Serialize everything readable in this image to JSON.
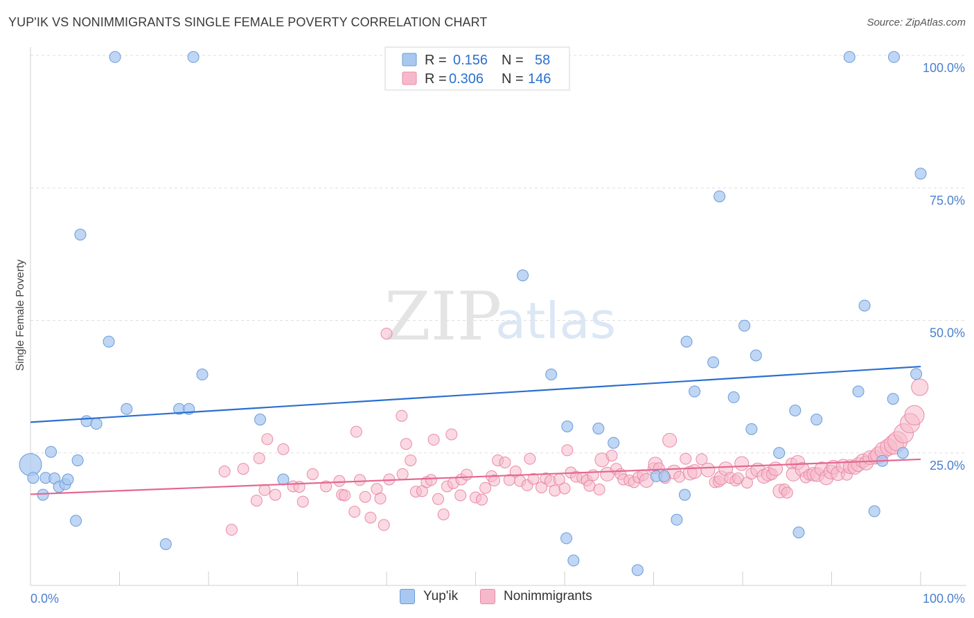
{
  "title": "YUP'IK VS NONIMMIGRANTS SINGLE FEMALE POVERTY CORRELATION CHART",
  "source": "Source: ZipAtlas.com",
  "watermark": {
    "zip": "ZIP",
    "atlas": "atlas"
  },
  "colors": {
    "blue_fill": "#a9c8f0",
    "blue_stroke": "#6a9bd8",
    "blue_line": "#2a6fd0",
    "pink_fill": "#f6b9cb",
    "pink_stroke": "#e88aa8",
    "pink_line": "#e5668f",
    "tick_text": "#4a7fd0",
    "grid": "#dddddd"
  },
  "legend_box": {
    "rows": [
      {
        "r_label": "R =",
        "r_value": "0.156",
        "n_label": "N =",
        "n_value": "58"
      },
      {
        "r_label": "R =",
        "r_value": "0.306",
        "n_label": "N =",
        "n_value": "146"
      }
    ]
  },
  "bottom_legend": {
    "items": [
      "Yup'ik",
      "Nonimmigrants"
    ]
  },
  "chart_data": {
    "type": "scatter",
    "title": "YUP'IK VS NONIMMIGRANTS SINGLE FEMALE POVERTY CORRELATION CHART",
    "xlabel": "",
    "ylabel": "Single Female Poverty",
    "xlim": [
      0,
      100
    ],
    "ylim": [
      0,
      100
    ],
    "x_tick_labels": [
      "0.0%",
      "100.0%"
    ],
    "y_tick_labels": [
      {
        "value": 25,
        "label": "25.0%"
      },
      {
        "value": 50,
        "label": "50.0%"
      },
      {
        "value": 75,
        "label": "75.0%"
      },
      {
        "value": 100,
        "label": "100.0%"
      }
    ],
    "grid": true,
    "legend_placement": "top-center",
    "series": [
      {
        "name": "Yup'ik",
        "r": 0.156,
        "n": 58,
        "trend": {
          "x": [
            0,
            100
          ],
          "y": [
            30.8,
            41.3
          ]
        },
        "points": [
          [
            0.0,
            22.8,
            16
          ],
          [
            0.3,
            20.3,
            8
          ],
          [
            1.4,
            17.1,
            8
          ],
          [
            1.7,
            20.3,
            8
          ],
          [
            2.3,
            25.2,
            8
          ],
          [
            2.7,
            20.2,
            8
          ],
          [
            3.2,
            18.6,
            8
          ],
          [
            3.9,
            19.1,
            8
          ],
          [
            4.2,
            20.0,
            8
          ],
          [
            5.1,
            12.2,
            8
          ],
          [
            5.3,
            23.6,
            8
          ],
          [
            5.6,
            66.2,
            8
          ],
          [
            6.3,
            31.0,
            8
          ],
          [
            7.4,
            30.5,
            8
          ],
          [
            8.8,
            46.0,
            8
          ],
          [
            9.5,
            99.7,
            8
          ],
          [
            10.8,
            33.3,
            8
          ],
          [
            15.2,
            7.8,
            8
          ],
          [
            16.7,
            33.3,
            8
          ],
          [
            17.8,
            33.3,
            8
          ],
          [
            18.3,
            99.7,
            8
          ],
          [
            19.3,
            39.8,
            8
          ],
          [
            25.8,
            31.3,
            8
          ],
          [
            28.4,
            20.0,
            8
          ],
          [
            55.3,
            58.5,
            8
          ],
          [
            58.5,
            39.8,
            8
          ],
          [
            60.2,
            8.9,
            8
          ],
          [
            60.3,
            30.0,
            8
          ],
          [
            61.0,
            4.7,
            8
          ],
          [
            63.8,
            29.6,
            8
          ],
          [
            65.5,
            26.9,
            8
          ],
          [
            68.2,
            2.9,
            8
          ],
          [
            70.3,
            20.6,
            8
          ],
          [
            71.2,
            20.6,
            8
          ],
          [
            72.6,
            12.4,
            8
          ],
          [
            73.5,
            17.1,
            8
          ],
          [
            73.7,
            46.0,
            8
          ],
          [
            74.6,
            36.6,
            8
          ],
          [
            76.7,
            42.1,
            8
          ],
          [
            77.4,
            73.4,
            8
          ],
          [
            79.0,
            35.5,
            8
          ],
          [
            80.2,
            49.0,
            8
          ],
          [
            81.0,
            29.5,
            8
          ],
          [
            81.5,
            43.4,
            8
          ],
          [
            84.1,
            25.0,
            8
          ],
          [
            85.9,
            33.0,
            8
          ],
          [
            86.3,
            10.0,
            8
          ],
          [
            88.3,
            31.3,
            8
          ],
          [
            92.0,
            99.7,
            8
          ],
          [
            93.0,
            36.6,
            8
          ],
          [
            93.7,
            52.8,
            8
          ],
          [
            94.8,
            14.0,
            8
          ],
          [
            95.7,
            23.5,
            8
          ],
          [
            96.9,
            35.2,
            8
          ],
          [
            97.0,
            99.7,
            8
          ],
          [
            98.0,
            25.0,
            8
          ],
          [
            99.5,
            39.9,
            8
          ],
          [
            100.0,
            77.7,
            8
          ]
        ]
      },
      {
        "name": "Nonimmigrants",
        "r": 0.306,
        "n": 146,
        "trend": {
          "x": [
            0,
            100
          ],
          "y": [
            17.2,
            23.8
          ]
        },
        "points": [
          [
            21.8,
            21.5,
            8
          ],
          [
            22.6,
            10.5,
            8
          ],
          [
            23.9,
            22.0,
            8
          ],
          [
            25.4,
            16.0,
            8
          ],
          [
            25.7,
            24.0,
            8
          ],
          [
            26.3,
            18.0,
            8
          ],
          [
            26.6,
            27.6,
            8
          ],
          [
            27.5,
            17.1,
            8
          ],
          [
            28.4,
            25.7,
            8
          ],
          [
            29.5,
            18.7,
            8
          ],
          [
            30.2,
            18.6,
            8
          ],
          [
            30.6,
            15.8,
            8
          ],
          [
            31.7,
            21.0,
            8
          ],
          [
            33.2,
            18.7,
            8
          ],
          [
            34.7,
            19.7,
            8
          ],
          [
            35.0,
            17.1,
            8
          ],
          [
            35.3,
            17.0,
            8
          ],
          [
            36.4,
            13.9,
            8
          ],
          [
            36.6,
            29.0,
            8
          ],
          [
            37.0,
            19.9,
            8
          ],
          [
            37.6,
            16.7,
            8
          ],
          [
            38.2,
            12.8,
            8
          ],
          [
            38.9,
            18.2,
            8
          ],
          [
            39.3,
            16.4,
            8
          ],
          [
            39.7,
            11.4,
            8
          ],
          [
            40.0,
            47.5,
            8
          ],
          [
            40.3,
            20.0,
            8
          ],
          [
            41.7,
            32.0,
            8
          ],
          [
            41.8,
            21.0,
            8
          ],
          [
            42.2,
            26.7,
            8
          ],
          [
            42.7,
            23.6,
            8
          ],
          [
            43.3,
            17.7,
            8
          ],
          [
            44.0,
            17.8,
            8
          ],
          [
            44.5,
            19.5,
            8
          ],
          [
            45.0,
            19.9,
            8
          ],
          [
            45.3,
            27.5,
            8
          ],
          [
            45.8,
            16.3,
            8
          ],
          [
            46.4,
            13.4,
            8
          ],
          [
            46.8,
            18.7,
            8
          ],
          [
            47.3,
            28.5,
            8
          ],
          [
            47.5,
            19.3,
            8
          ],
          [
            48.3,
            17.0,
            8
          ],
          [
            48.4,
            20.0,
            8
          ],
          [
            49.0,
            20.9,
            8
          ],
          [
            50.0,
            16.6,
            8
          ],
          [
            50.7,
            16.2,
            8
          ],
          [
            51.1,
            18.4,
            8
          ],
          [
            51.8,
            20.6,
            8
          ],
          [
            52.1,
            19.8,
            8
          ],
          [
            52.5,
            23.6,
            8
          ],
          [
            53.3,
            23.2,
            8
          ],
          [
            53.8,
            19.9,
            8
          ],
          [
            54.5,
            21.5,
            8
          ],
          [
            55.0,
            19.7,
            8
          ],
          [
            55.8,
            18.9,
            8
          ],
          [
            56.1,
            23.9,
            8
          ],
          [
            56.5,
            20.1,
            8
          ],
          [
            57.4,
            18.5,
            8
          ],
          [
            57.9,
            20.2,
            8
          ],
          [
            58.4,
            19.7,
            8
          ],
          [
            58.9,
            17.9,
            8
          ],
          [
            59.4,
            20.0,
            8
          ],
          [
            60.0,
            18.3,
            8
          ],
          [
            60.3,
            25.5,
            8
          ],
          [
            60.7,
            21.3,
            8
          ],
          [
            61.3,
            20.5,
            8
          ],
          [
            62.0,
            20.3,
            8
          ],
          [
            62.5,
            19.8,
            8
          ],
          [
            62.8,
            18.8,
            8
          ],
          [
            63.2,
            20.8,
            8
          ],
          [
            63.9,
            18.1,
            8
          ],
          [
            64.2,
            23.7,
            10
          ],
          [
            64.8,
            21.0,
            10
          ],
          [
            65.3,
            24.5,
            8
          ],
          [
            65.8,
            22.0,
            8
          ],
          [
            66.3,
            21.0,
            8
          ],
          [
            66.6,
            20.0,
            8
          ],
          [
            67.3,
            19.8,
            8
          ],
          [
            67.8,
            19.5,
            8
          ],
          [
            68.3,
            20.4,
            8
          ],
          [
            68.8,
            20.8,
            8
          ],
          [
            69.2,
            19.8,
            10
          ],
          [
            70.0,
            22.1,
            8
          ],
          [
            70.2,
            22.9,
            10
          ],
          [
            70.6,
            22.1,
            8
          ],
          [
            71.3,
            20.3,
            8
          ],
          [
            71.8,
            27.4,
            10
          ],
          [
            72.3,
            21.4,
            10
          ],
          [
            72.9,
            20.5,
            8
          ],
          [
            73.6,
            23.9,
            8
          ],
          [
            74.1,
            21.2,
            10
          ],
          [
            74.6,
            21.5,
            10
          ],
          [
            75.4,
            23.8,
            8
          ],
          [
            76.1,
            21.8,
            10
          ],
          [
            76.9,
            19.5,
            8
          ],
          [
            77.3,
            19.6,
            8
          ],
          [
            77.6,
            20.3,
            10
          ],
          [
            78.1,
            22.0,
            10
          ],
          [
            78.6,
            20.3,
            8
          ],
          [
            79.2,
            19.8,
            8
          ],
          [
            79.5,
            20.2,
            8
          ],
          [
            79.9,
            23.0,
            10
          ],
          [
            80.5,
            19.4,
            8
          ],
          [
            81.0,
            21.1,
            8
          ],
          [
            81.7,
            21.8,
            10
          ],
          [
            82.4,
            20.6,
            10
          ],
          [
            82.9,
            21.0,
            10
          ],
          [
            83.3,
            21.0,
            8
          ],
          [
            83.7,
            22.0,
            10
          ],
          [
            84.2,
            17.8,
            10
          ],
          [
            84.7,
            18.1,
            8
          ],
          [
            85.0,
            17.5,
            8
          ],
          [
            85.5,
            23.0,
            8
          ],
          [
            85.7,
            21.0,
            10
          ],
          [
            86.2,
            23.2,
            10
          ],
          [
            86.7,
            21.9,
            10
          ],
          [
            87.1,
            20.4,
            8
          ],
          [
            87.5,
            20.9,
            8
          ],
          [
            88.0,
            21.0,
            10
          ],
          [
            88.4,
            20.9,
            10
          ],
          [
            88.9,
            22.0,
            10
          ],
          [
            89.4,
            20.3,
            10
          ],
          [
            89.9,
            21.4,
            10
          ],
          [
            90.2,
            22.3,
            10
          ],
          [
            90.7,
            21.1,
            10
          ],
          [
            91.3,
            22.5,
            10
          ],
          [
            91.7,
            20.9,
            8
          ],
          [
            92.1,
            22.4,
            10
          ],
          [
            92.6,
            22.3,
            10
          ],
          [
            93.0,
            22.8,
            10
          ],
          [
            93.5,
            23.5,
            10
          ],
          [
            93.9,
            23.1,
            10
          ],
          [
            94.3,
            24.1,
            10
          ],
          [
            94.9,
            24.2,
            10
          ],
          [
            95.3,
            24.6,
            12
          ],
          [
            95.8,
            25.5,
            12
          ],
          [
            96.4,
            26.1,
            12
          ],
          [
            97.0,
            26.6,
            14
          ],
          [
            97.4,
            27.2,
            14
          ],
          [
            98.1,
            28.7,
            14
          ],
          [
            98.8,
            30.6,
            14
          ],
          [
            99.3,
            32.1,
            14
          ],
          [
            99.9,
            37.4,
            12
          ]
        ]
      }
    ]
  }
}
